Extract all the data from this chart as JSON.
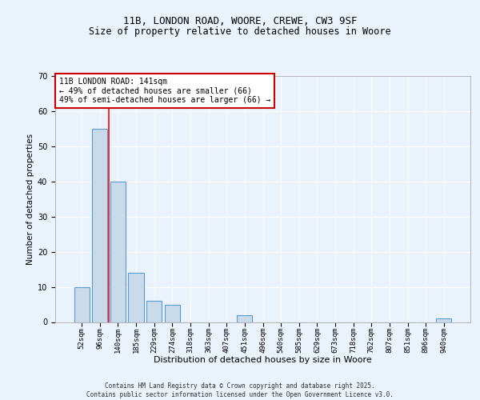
{
  "title1": "11B, LONDON ROAD, WOORE, CREWE, CW3 9SF",
  "title2": "Size of property relative to detached houses in Woore",
  "xlabel": "Distribution of detached houses by size in Woore",
  "ylabel": "Number of detached properties",
  "categories": [
    "52sqm",
    "96sqm",
    "140sqm",
    "185sqm",
    "229sqm",
    "274sqm",
    "318sqm",
    "363sqm",
    "407sqm",
    "451sqm",
    "496sqm",
    "540sqm",
    "585sqm",
    "629sqm",
    "673sqm",
    "718sqm",
    "762sqm",
    "807sqm",
    "851sqm",
    "896sqm",
    "940sqm"
  ],
  "values": [
    10,
    55,
    40,
    14,
    6,
    5,
    0,
    0,
    0,
    2,
    0,
    0,
    0,
    0,
    0,
    0,
    0,
    0,
    0,
    0,
    1
  ],
  "bar_color": "#c9daea",
  "bar_edge_color": "#5b9bd5",
  "red_line_x": 1.5,
  "annotation_text": "11B LONDON ROAD: 141sqm\n← 49% of detached houses are smaller (66)\n49% of semi-detached houses are larger (66) →",
  "annotation_box_color": "#ffffff",
  "annotation_border_color": "#cc0000",
  "ylim": [
    0,
    70
  ],
  "yticks": [
    0,
    10,
    20,
    30,
    40,
    50,
    60,
    70
  ],
  "footer": "Contains HM Land Registry data © Crown copyright and database right 2025.\nContains public sector information licensed under the Open Government Licence v3.0.",
  "bg_color": "#eaf2fb",
  "plot_bg_color": "#eaf2fb",
  "grid_color": "#ffffff",
  "title_fontsize": 9,
  "subtitle_fontsize": 8.5,
  "tick_fontsize": 6.5,
  "ylabel_fontsize": 7.5,
  "xlabel_fontsize": 8,
  "annotation_fontsize": 7,
  "footer_fontsize": 5.5,
  "bar_width": 0.85
}
